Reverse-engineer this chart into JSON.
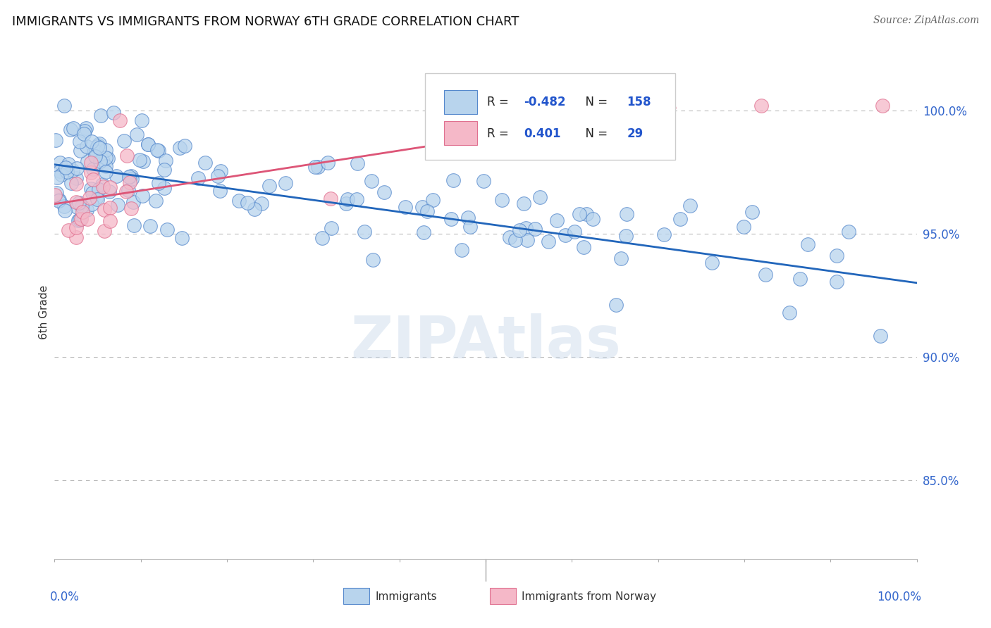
{
  "title": "IMMIGRANTS VS IMMIGRANTS FROM NORWAY 6TH GRADE CORRELATION CHART",
  "source": "Source: ZipAtlas.com",
  "ylabel": "6th Grade",
  "ylabel_right_labels": [
    "100.0%",
    "95.0%",
    "90.0%",
    "85.0%"
  ],
  "ylabel_right_values": [
    1.0,
    0.95,
    0.9,
    0.85
  ],
  "xlim": [
    0.0,
    1.0
  ],
  "ylim": [
    0.818,
    1.018
  ],
  "blue_R": -0.482,
  "blue_N": 158,
  "pink_R": 0.401,
  "pink_N": 29,
  "blue_color": "#b8d4ed",
  "blue_edge_color": "#5588cc",
  "blue_line_color": "#2266bb",
  "pink_color": "#f5b8c8",
  "pink_edge_color": "#e07090",
  "pink_line_color": "#dd5577",
  "background_color": "#ffffff",
  "legend_text_color": "#2255cc",
  "blue_trendline_x": [
    0.0,
    1.0
  ],
  "blue_trendline_y": [
    0.978,
    0.93
  ],
  "pink_trendline_x": [
    0.0,
    0.72
  ],
  "pink_trendline_y": [
    0.962,
    1.001
  ]
}
